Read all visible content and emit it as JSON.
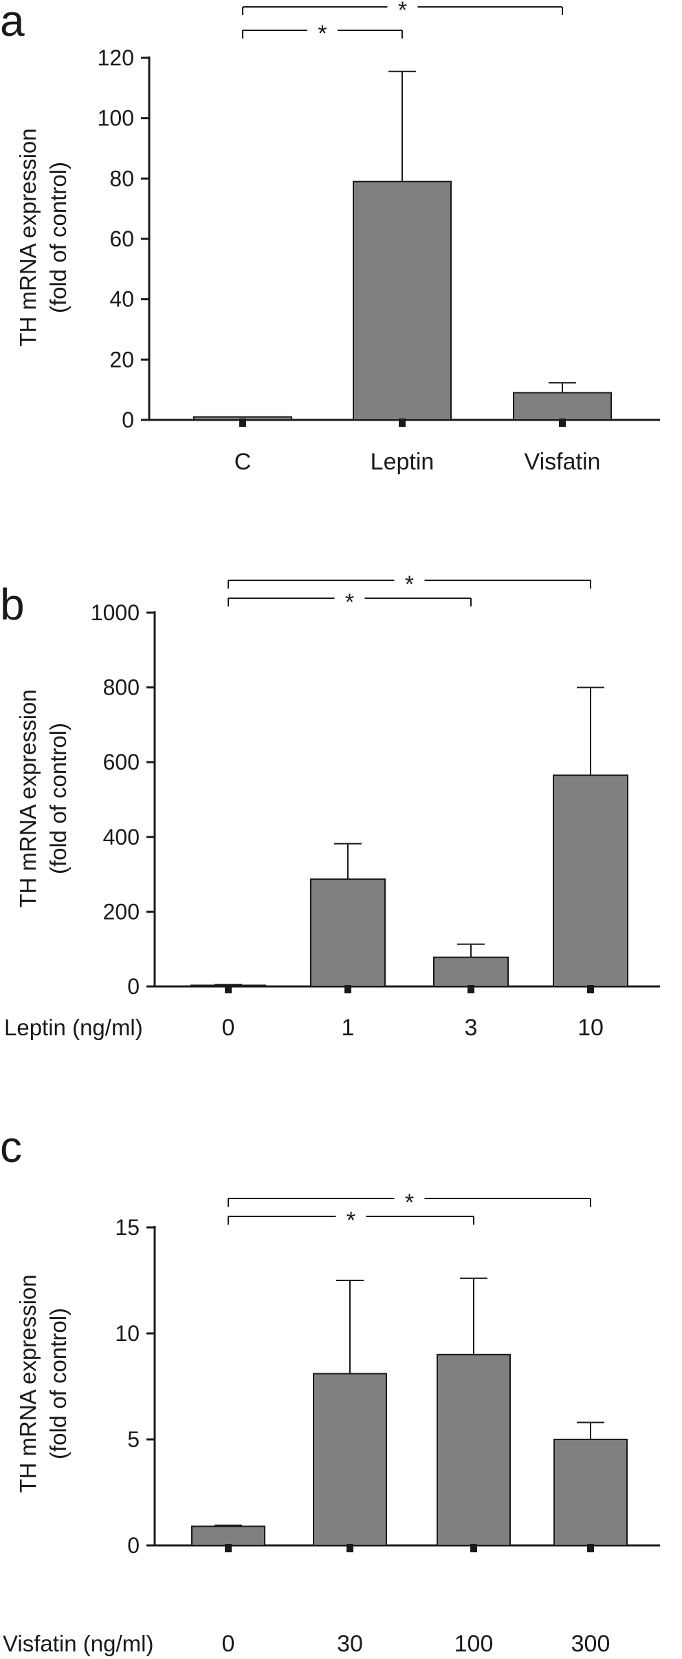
{
  "colors": {
    "bar": "#808080",
    "ink": "#1a1a1a"
  },
  "chart_data": [
    {
      "panel": "a",
      "type": "bar",
      "ylabel_lines": [
        "TH mRNA expression",
        "(fold of control)"
      ],
      "xlabel": "",
      "categories": [
        "C",
        "Leptin",
        "Visfatin"
      ],
      "values": [
        1,
        79,
        9
      ],
      "errors_upper": [
        0,
        36.5,
        3.3
      ],
      "ylim": [
        0,
        120
      ],
      "yticks": [
        0,
        20,
        40,
        60,
        80,
        100,
        120
      ],
      "grid": false,
      "significance": [
        {
          "from": 0,
          "to": 1,
          "label": "*"
        },
        {
          "from": 0,
          "to": 2,
          "label": "*"
        }
      ]
    },
    {
      "panel": "b",
      "type": "bar",
      "ylabel_lines": [
        "TH mRNA expression",
        "(fold of control)"
      ],
      "xlabel": "Leptin (ng/ml)",
      "categories": [
        "0",
        "1",
        "3",
        "10"
      ],
      "values": [
        3,
        287,
        78,
        565
      ],
      "errors_upper": [
        2,
        95,
        35,
        235
      ],
      "ylim": [
        0,
        1000
      ],
      "yticks": [
        0,
        200,
        400,
        600,
        800,
        1000
      ],
      "grid": false,
      "significance": [
        {
          "from": 0,
          "to": 2,
          "label": "*"
        },
        {
          "from": 0,
          "to": 3,
          "label": "*"
        }
      ]
    },
    {
      "panel": "c",
      "type": "bar",
      "ylabel_lines": [
        "TH mRNA expression",
        "(fold of control)"
      ],
      "xlabel": "Visfatin (ng/ml)",
      "categories": [
        "0",
        "30",
        "100",
        "300"
      ],
      "values": [
        0.9,
        8.1,
        9.0,
        5.0
      ],
      "errors_upper": [
        0.05,
        4.4,
        3.6,
        0.8
      ],
      "ylim": [
        0,
        15
      ],
      "yticks": [
        0,
        5,
        10,
        15
      ],
      "grid": false,
      "significance": [
        {
          "from": 0,
          "to": 2,
          "label": "*"
        },
        {
          "from": 0,
          "to": 3,
          "label": "*"
        }
      ]
    }
  ]
}
